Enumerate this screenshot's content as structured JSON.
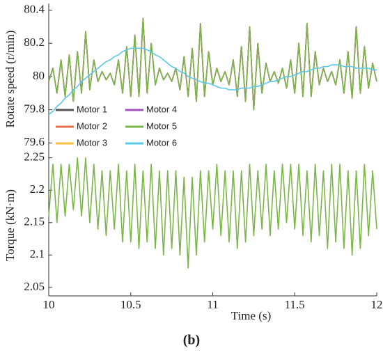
{
  "chart_data": [
    {
      "type": "line",
      "y_label": "Rotate speed (r/min)",
      "legend": "lower left",
      "xlim": [
        10,
        12
      ],
      "ylim": [
        79.53,
        80.44
      ],
      "yticks": [
        79.6,
        79.8,
        80,
        80.2,
        80.4
      ],
      "x": [
        10,
        10.025,
        10.05,
        10.075,
        10.1,
        10.125,
        10.15,
        10.175,
        10.2,
        10.225,
        10.25,
        10.275,
        10.3,
        10.325,
        10.35,
        10.375,
        10.4,
        10.425,
        10.45,
        10.475,
        10.5,
        10.525,
        10.55,
        10.575,
        10.6,
        10.625,
        10.65,
        10.675,
        10.7,
        10.725,
        10.75,
        10.775,
        10.8,
        10.825,
        10.85,
        10.875,
        10.9,
        10.925,
        10.95,
        10.975,
        11,
        11.025,
        11.05,
        11.075,
        11.1,
        11.125,
        11.15,
        11.175,
        11.2,
        11.225,
        11.25,
        11.275,
        11.3,
        11.325,
        11.35,
        11.375,
        11.4,
        11.425,
        11.45,
        11.475,
        11.5,
        11.525,
        11.55,
        11.575,
        11.6,
        11.625,
        11.65,
        11.675,
        11.7,
        11.725,
        11.75,
        11.775,
        11.8,
        11.825,
        11.85,
        11.875,
        11.9,
        11.925,
        11.95,
        11.975,
        12
      ],
      "series": [
        {
          "name": "Motor 1",
          "color": "#555555",
          "values": [
            79.97,
            80.05,
            79.9,
            80.1,
            79.88,
            80.13,
            79.85,
            80.15,
            79.9,
            80.27,
            79.92,
            80.1,
            79.97,
            80.03,
            79.98,
            80.02,
            79.95,
            80.1,
            79.9,
            80.18,
            79.88,
            80.25,
            79.88,
            80.35,
            79.9,
            80.2,
            79.95,
            80.05,
            79.98,
            80.02,
            79.97,
            80.05,
            79.92,
            80.12,
            79.88,
            80.17,
            79.85,
            80.32,
            79.88,
            80.15,
            79.95,
            80.05,
            79.97,
            80.03,
            79.95,
            80.1,
            79.88,
            80.18,
            79.85,
            80.3,
            79.8,
            80.2,
            79.9,
            80.08,
            79.97,
            80.03,
            79.96,
            80.05,
            79.93,
            80.1,
            79.9,
            80.2,
            79.88,
            80.32,
            79.88,
            80.15,
            79.95,
            80.05,
            79.97,
            80.03,
            79.95,
            80.1,
            79.9,
            80.15,
            79.87,
            80.3,
            79.9,
            80.18,
            79.93,
            80.08,
            79.97
          ]
        },
        {
          "name": "Motor 2",
          "color": "#e8704a",
          "values": [
            79.97,
            80.05,
            79.9,
            80.1,
            79.88,
            80.13,
            79.85,
            80.15,
            79.9,
            80.27,
            79.92,
            80.1,
            79.97,
            80.03,
            79.98,
            80.02,
            79.95,
            80.1,
            79.9,
            80.18,
            79.88,
            80.25,
            79.88,
            80.35,
            79.9,
            80.2,
            79.95,
            80.05,
            79.98,
            80.02,
            79.97,
            80.05,
            79.92,
            80.12,
            79.88,
            80.17,
            79.85,
            80.32,
            79.88,
            80.15,
            79.95,
            80.05,
            79.97,
            80.03,
            79.95,
            80.1,
            79.88,
            80.18,
            79.85,
            80.3,
            79.8,
            80.2,
            79.9,
            80.08,
            79.97,
            80.03,
            79.96,
            80.05,
            79.93,
            80.1,
            79.9,
            80.2,
            79.88,
            80.32,
            79.88,
            80.15,
            79.95,
            80.05,
            79.97,
            80.03,
            79.95,
            80.1,
            79.9,
            80.15,
            79.87,
            80.3,
            79.9,
            80.18,
            79.93,
            80.08,
            79.97
          ]
        },
        {
          "name": "Motor 3",
          "color": "#f5c242",
          "values": [
            79.97,
            80.05,
            79.9,
            80.1,
            79.88,
            80.13,
            79.85,
            80.15,
            79.9,
            80.27,
            79.92,
            80.1,
            79.97,
            80.03,
            79.98,
            80.02,
            79.95,
            80.1,
            79.9,
            80.18,
            79.88,
            80.25,
            79.88,
            80.35,
            79.9,
            80.2,
            79.95,
            80.05,
            79.98,
            80.02,
            79.97,
            80.05,
            79.92,
            80.12,
            79.88,
            80.17,
            79.85,
            80.32,
            79.88,
            80.15,
            79.95,
            80.05,
            79.97,
            80.03,
            79.95,
            80.1,
            79.88,
            80.18,
            79.85,
            80.3,
            79.8,
            80.2,
            79.9,
            80.08,
            79.97,
            80.03,
            79.96,
            80.05,
            79.93,
            80.1,
            79.9,
            80.2,
            79.88,
            80.32,
            79.88,
            80.15,
            79.95,
            80.05,
            79.97,
            80.03,
            79.95,
            80.1,
            79.9,
            80.15,
            79.87,
            80.3,
            79.9,
            80.18,
            79.93,
            80.08,
            79.97
          ]
        },
        {
          "name": "Motor 4",
          "color": "#a050c0",
          "values": [
            79.97,
            80.05,
            79.9,
            80.1,
            79.88,
            80.13,
            79.85,
            80.15,
            79.9,
            80.27,
            79.92,
            80.1,
            79.97,
            80.03,
            79.98,
            80.02,
            79.95,
            80.1,
            79.9,
            80.18,
            79.88,
            80.25,
            79.88,
            80.35,
            79.9,
            80.2,
            79.95,
            80.05,
            79.98,
            80.02,
            79.97,
            80.05,
            79.92,
            80.12,
            79.88,
            80.17,
            79.85,
            80.32,
            79.88,
            80.15,
            79.95,
            80.05,
            79.97,
            80.03,
            79.95,
            80.1,
            79.88,
            80.18,
            79.85,
            80.3,
            79.8,
            80.2,
            79.9,
            80.08,
            79.97,
            80.03,
            79.96,
            80.05,
            79.93,
            80.1,
            79.9,
            80.2,
            79.88,
            80.32,
            79.88,
            80.15,
            79.95,
            80.05,
            79.97,
            80.03,
            79.95,
            80.1,
            79.9,
            80.15,
            79.87,
            80.3,
            79.9,
            80.18,
            79.93,
            80.08,
            79.97
          ]
        },
        {
          "name": "Motor 5",
          "color": "#7ab648",
          "values": [
            79.97,
            80.05,
            79.9,
            80.1,
            79.88,
            80.13,
            79.85,
            80.15,
            79.9,
            80.27,
            79.92,
            80.1,
            79.97,
            80.03,
            79.98,
            80.02,
            79.95,
            80.1,
            79.9,
            80.18,
            79.88,
            80.25,
            79.88,
            80.35,
            79.9,
            80.2,
            79.95,
            80.05,
            79.98,
            80.02,
            79.97,
            80.05,
            79.92,
            80.12,
            79.88,
            80.17,
            79.85,
            80.32,
            79.88,
            80.15,
            79.95,
            80.05,
            79.97,
            80.03,
            79.95,
            80.1,
            79.88,
            80.18,
            79.85,
            80.3,
            79.8,
            80.2,
            79.9,
            80.08,
            79.97,
            80.03,
            79.96,
            80.05,
            79.93,
            80.1,
            79.9,
            80.2,
            79.88,
            80.32,
            79.88,
            80.15,
            79.95,
            80.05,
            79.97,
            80.03,
            79.95,
            80.1,
            79.9,
            80.15,
            79.87,
            80.3,
            79.9,
            80.18,
            79.93,
            80.08,
            79.97
          ]
        },
        {
          "name": "Motor 6",
          "color": "#5bc8e8",
          "values": [
            79.77,
            79.79,
            79.82,
            79.84,
            79.87,
            79.89,
            79.92,
            79.94,
            79.97,
            79.99,
            80.01,
            80.03,
            80.05,
            80.07,
            80.09,
            80.1,
            80.12,
            80.13,
            80.15,
            80.16,
            80.17,
            80.17,
            80.17,
            80.17,
            80.16,
            80.15,
            80.13,
            80.12,
            80.1,
            80.08,
            80.06,
            80.05,
            80.03,
            80.02,
            80,
            79.99,
            79.98,
            79.97,
            79.96,
            79.96,
            79.95,
            79.94,
            79.93,
            79.93,
            79.92,
            79.92,
            79.92,
            79.93,
            79.93,
            79.93,
            79.94,
            79.94,
            79.95,
            79.96,
            79.97,
            79.97,
            79.98,
            79.99,
            80,
            80,
            80.01,
            80.02,
            80.03,
            80.03,
            80.04,
            80.05,
            80.05,
            80.06,
            80.06,
            80.07,
            80.07,
            80.07,
            80.06,
            80.06,
            80.06,
            80.05,
            80.05,
            80.05,
            80.05,
            80.04,
            80.04
          ]
        }
      ]
    },
    {
      "type": "line",
      "y_label": "Torque (kN·m)",
      "x_label": "Time (s)",
      "xlim": [
        10,
        12
      ],
      "ylim": [
        2.037,
        2.255
      ],
      "yticks": [
        2.05,
        2.1,
        2.15,
        2.2,
        2.25
      ],
      "xticks": [
        10,
        10.5,
        11,
        11.5,
        12
      ],
      "x": [
        10,
        10.025,
        10.05,
        10.075,
        10.1,
        10.125,
        10.15,
        10.175,
        10.2,
        10.225,
        10.25,
        10.275,
        10.3,
        10.325,
        10.35,
        10.375,
        10.4,
        10.425,
        10.45,
        10.475,
        10.5,
        10.525,
        10.55,
        10.575,
        10.6,
        10.625,
        10.65,
        10.675,
        10.7,
        10.725,
        10.75,
        10.775,
        10.8,
        10.825,
        10.85,
        10.875,
        10.9,
        10.925,
        10.95,
        10.975,
        11,
        11.025,
        11.05,
        11.075,
        11.1,
        11.125,
        11.15,
        11.175,
        11.2,
        11.225,
        11.25,
        11.275,
        11.3,
        11.325,
        11.35,
        11.375,
        11.4,
        11.425,
        11.45,
        11.475,
        11.5,
        11.525,
        11.55,
        11.575,
        11.6,
        11.625,
        11.65,
        11.675,
        11.7,
        11.725,
        11.75,
        11.775,
        11.8,
        11.825,
        11.85,
        11.875,
        11.9,
        11.925,
        11.95,
        11.975,
        12
      ],
      "series": [
        {
          "color": "#7ab648",
          "values": [
            2.16,
            2.24,
            2.15,
            2.24,
            2.16,
            2.24,
            2.17,
            2.25,
            2.16,
            2.25,
            2.15,
            2.24,
            2.14,
            2.23,
            2.13,
            2.23,
            2.14,
            2.24,
            2.12,
            2.23,
            2.12,
            2.24,
            2.11,
            2.23,
            2.12,
            2.24,
            2.11,
            2.23,
            2.1,
            2.23,
            2.11,
            2.23,
            2.1,
            2.22,
            2.08,
            2.22,
            2.1,
            2.23,
            2.12,
            2.23,
            2.14,
            2.24,
            2.13,
            2.23,
            2.12,
            2.23,
            2.11,
            2.23,
            2.12,
            2.24,
            2.13,
            2.23,
            2.14,
            2.24,
            2.13,
            2.23,
            2.14,
            2.24,
            2.15,
            2.24,
            2.14,
            2.24,
            2.13,
            2.23,
            2.12,
            2.24,
            2.13,
            2.23,
            2.11,
            2.24,
            2.12,
            2.24,
            2.11,
            2.23,
            2.1,
            2.23,
            2.11,
            2.24,
            2.13,
            2.23,
            2.14
          ]
        }
      ]
    }
  ],
  "caption": "(b)"
}
